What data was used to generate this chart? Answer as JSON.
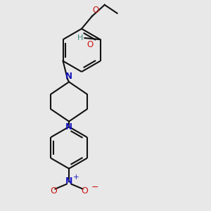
{
  "bg_color": "#e8e8e8",
  "bond_color": "#111111",
  "N_color": "#1515bb",
  "O_color": "#cc1515",
  "H_color": "#3a8a7a",
  "lw": 1.5,
  "figsize": [
    3.0,
    3.0
  ],
  "dpi": 100,
  "xlim": [
    -1.5,
    3.5
  ],
  "ylim": [
    -1.8,
    5.2
  ]
}
